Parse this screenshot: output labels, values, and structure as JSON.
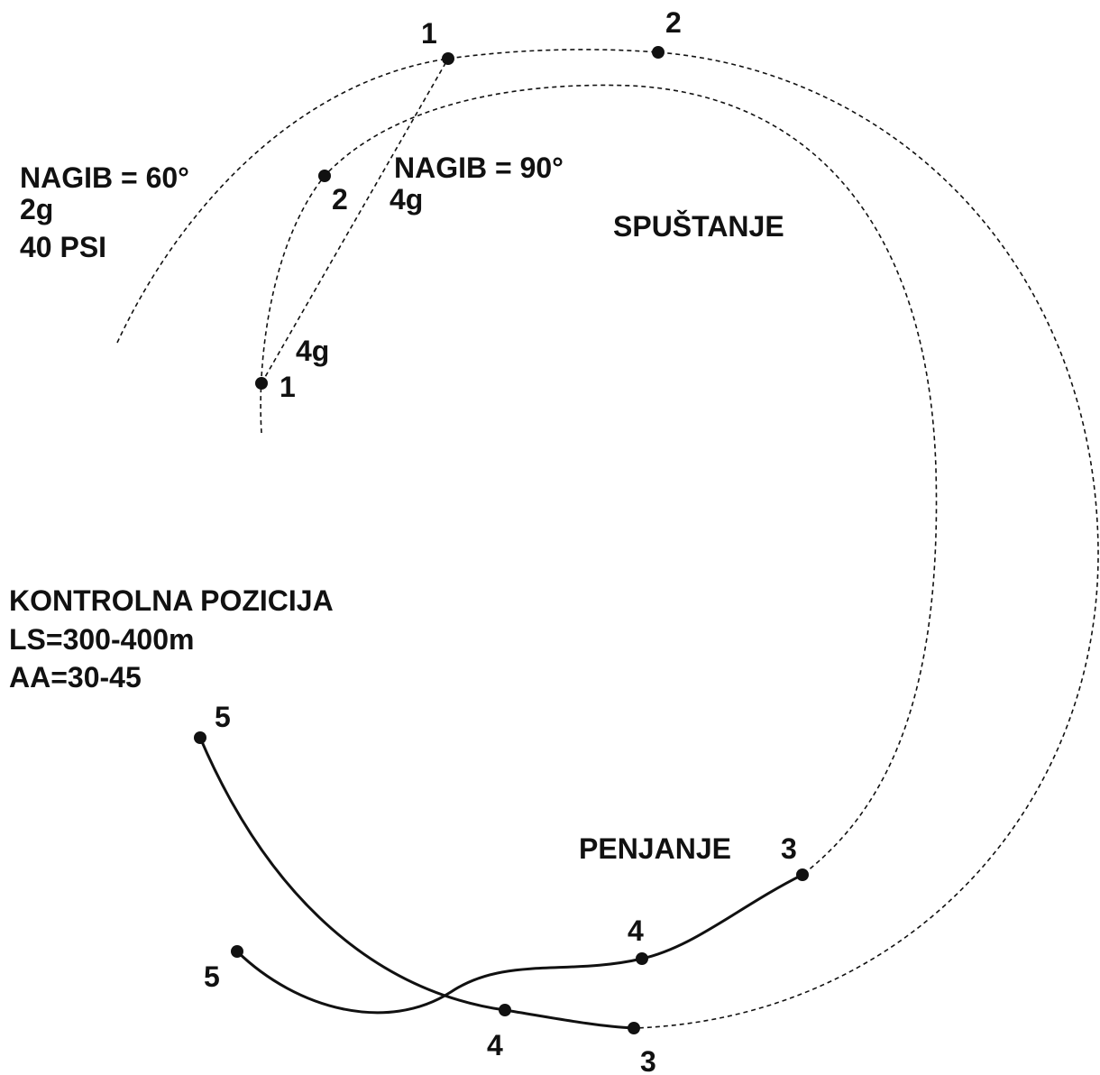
{
  "left_label": [
    "NAGIB = 60°",
    "2g",
    "40 PSI"
  ],
  "mid_label": [
    "NAGIB = 90°",
    "4g"
  ],
  "descent_label": "SPUŠTANJE",
  "climb_label": "PENJANJE",
  "control_label": [
    "KONTROLNA POZICIJA",
    "LS=300-400m",
    "AA=30-45"
  ],
  "points": [
    "1",
    "2",
    "2",
    "1",
    "4g",
    "3",
    "4",
    "5",
    "5",
    "4",
    "3"
  ]
}
